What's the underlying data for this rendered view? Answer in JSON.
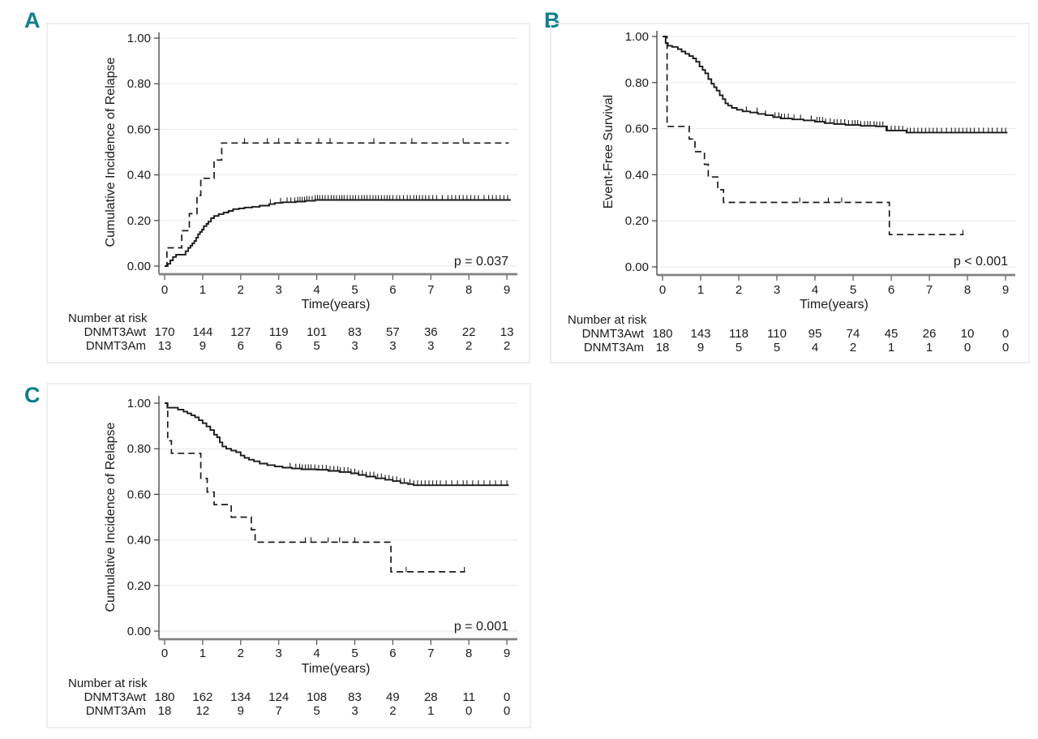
{
  "colors": {
    "accent": "#0f808c",
    "curve": "#1a1a1a",
    "grid": "#e8e8e8",
    "axis_x": "#808080",
    "axis_y": "#3d3d3d",
    "panel_border": "#eae7e7",
    "background": "#ffffff"
  },
  "chart_data": [
    {
      "type": "line",
      "subtype": "survival-step",
      "panel": "A",
      "ylabel": "Cumulative Incidence of Relapse",
      "xlabel": "Time(years)",
      "p_value": "p = 0.037",
      "ylim": [
        0,
        1
      ],
      "xlim": [
        0,
        9
      ],
      "grid": true,
      "yticks": {
        "values": [
          0,
          0.2,
          0.4,
          0.6,
          0.8,
          1.0
        ],
        "labels": [
          "0.00",
          "0.20",
          "0.40",
          "0.60",
          "0.80",
          "1.00"
        ]
      },
      "xticks": {
        "values": [
          0,
          1,
          2,
          3,
          4,
          5,
          6,
          7,
          8,
          9
        ],
        "labels": [
          "0",
          "1",
          "2",
          "3",
          "4",
          "5",
          "6",
          "7",
          "8",
          "9"
        ]
      },
      "series": [
        {
          "name": "DNMT3Awt",
          "style": "solid",
          "end_t": 9.1,
          "points": [
            [
              0,
              0
            ],
            [
              0.08,
              0.01
            ],
            [
              0.15,
              0.025
            ],
            [
              0.22,
              0.04
            ],
            [
              0.3,
              0.05
            ],
            [
              0.55,
              0.065
            ],
            [
              0.62,
              0.08
            ],
            [
              0.68,
              0.09
            ],
            [
              0.73,
              0.1
            ],
            [
              0.78,
              0.11
            ],
            [
              0.83,
              0.125
            ],
            [
              0.88,
              0.14
            ],
            [
              0.93,
              0.15
            ],
            [
              0.98,
              0.16
            ],
            [
              1.03,
              0.175
            ],
            [
              1.1,
              0.185
            ],
            [
              1.15,
              0.195
            ],
            [
              1.22,
              0.21
            ],
            [
              1.3,
              0.22
            ],
            [
              1.42,
              0.228
            ],
            [
              1.55,
              0.235
            ],
            [
              1.68,
              0.242
            ],
            [
              1.8,
              0.25
            ],
            [
              1.95,
              0.253
            ],
            [
              2.1,
              0.257
            ],
            [
              2.3,
              0.26
            ],
            [
              2.5,
              0.265
            ],
            [
              2.75,
              0.272
            ],
            [
              2.9,
              0.277
            ],
            [
              3.1,
              0.28
            ],
            [
              3.45,
              0.283
            ],
            [
              3.7,
              0.286
            ],
            [
              3.95,
              0.29
            ]
          ],
          "censor_t": [
            2.78,
            3.05,
            3.22,
            3.32,
            3.42,
            3.5,
            3.56,
            3.62,
            3.68,
            3.74,
            3.8,
            3.88,
            3.96,
            4.02,
            4.08,
            4.15,
            4.22,
            4.3,
            4.38,
            4.45,
            4.52,
            4.6,
            4.66,
            4.72,
            4.8,
            4.88,
            4.95,
            5.02,
            5.1,
            5.18,
            5.25,
            5.32,
            5.4,
            5.48,
            5.55,
            5.62,
            5.7,
            5.78,
            5.85,
            5.92,
            6.0,
            6.1,
            6.18,
            6.28,
            6.38,
            6.46,
            6.55,
            6.62,
            6.7,
            6.78,
            6.86,
            6.95,
            7.05,
            7.15,
            7.3,
            7.45,
            7.55,
            7.65,
            7.75,
            7.85,
            7.95,
            8.05,
            8.15,
            8.25,
            8.4,
            8.52,
            8.62,
            8.72,
            8.82,
            8.92,
            9.02
          ]
        },
        {
          "name": "DNMT3Am",
          "style": "dashed",
          "end_t": 9.05,
          "points": [
            [
              0,
              0
            ],
            [
              0.06,
              0.08
            ],
            [
              0.45,
              0.155
            ],
            [
              0.65,
              0.23
            ],
            [
              0.85,
              0.31
            ],
            [
              0.95,
              0.385
            ],
            [
              1.3,
              0.465
            ],
            [
              1.5,
              0.54
            ]
          ],
          "censor_t": [
            2.1,
            2.7,
            3.0,
            3.5,
            4.05,
            4.35,
            5.5,
            6.5,
            7.85
          ]
        }
      ],
      "number_at_risk": {
        "header": "Number at risk",
        "rows": [
          {
            "label": "DNMT3Awt",
            "values": [
              "170",
              "144",
              "127",
              "119",
              "101",
              "83",
              "57",
              "36",
              "22",
              "13"
            ]
          },
          {
            "label": "DNMT3Am",
            "values": [
              "13",
              "9",
              "6",
              "6",
              "5",
              "3",
              "3",
              "3",
              "2",
              "2"
            ]
          }
        ]
      }
    },
    {
      "type": "line",
      "subtype": "survival-step",
      "panel": "B",
      "ylabel": "Event-Free Survival",
      "xlabel": "Time(years)",
      "p_value": "p < 0.001",
      "ylim": [
        0,
        1
      ],
      "xlim": [
        0,
        9
      ],
      "grid": true,
      "yticks": {
        "values": [
          0,
          0.2,
          0.4,
          0.6,
          0.8,
          1.0
        ],
        "labels": [
          "0.00",
          "0.20",
          "0.40",
          "0.60",
          "0.80",
          "1.00"
        ]
      },
      "xticks": {
        "values": [
          0,
          1,
          2,
          3,
          4,
          5,
          6,
          7,
          8,
          9
        ],
        "labels": [
          "0",
          "1",
          "2",
          "3",
          "4",
          "5",
          "6",
          "7",
          "8",
          "9"
        ]
      },
      "series": [
        {
          "name": "DNMT3Awt",
          "style": "solid",
          "end_t": 9.05,
          "points": [
            [
              0,
              1.0
            ],
            [
              0.08,
              0.972
            ],
            [
              0.14,
              0.96
            ],
            [
              0.25,
              0.955
            ],
            [
              0.4,
              0.945
            ],
            [
              0.5,
              0.935
            ],
            [
              0.6,
              0.925
            ],
            [
              0.7,
              0.915
            ],
            [
              0.8,
              0.905
            ],
            [
              0.88,
              0.89
            ],
            [
              0.97,
              0.87
            ],
            [
              1.05,
              0.855
            ],
            [
              1.12,
              0.84
            ],
            [
              1.2,
              0.815
            ],
            [
              1.28,
              0.795
            ],
            [
              1.35,
              0.78
            ],
            [
              1.42,
              0.765
            ],
            [
              1.5,
              0.745
            ],
            [
              1.58,
              0.728
            ],
            [
              1.65,
              0.71
            ],
            [
              1.72,
              0.7
            ],
            [
              1.82,
              0.69
            ],
            [
              1.95,
              0.682
            ],
            [
              2.1,
              0.675
            ],
            [
              2.3,
              0.67
            ],
            [
              2.5,
              0.664
            ],
            [
              2.7,
              0.658
            ],
            [
              2.9,
              0.65
            ],
            [
              3.1,
              0.644
            ],
            [
              3.4,
              0.64
            ],
            [
              3.7,
              0.636
            ],
            [
              4.0,
              0.63
            ],
            [
              4.25,
              0.624
            ],
            [
              4.5,
              0.62
            ],
            [
              4.8,
              0.616
            ],
            [
              5.2,
              0.612
            ],
            [
              5.6,
              0.61
            ],
            [
              5.87,
              0.592
            ],
            [
              6.4,
              0.583
            ]
          ],
          "censor_t": [
            2.2,
            2.48,
            2.7,
            2.95,
            3.05,
            3.12,
            3.2,
            3.3,
            3.45,
            3.62,
            3.9,
            4.05,
            4.12,
            4.2,
            4.28,
            4.4,
            4.5,
            4.58,
            4.68,
            4.78,
            4.88,
            4.98,
            5.05,
            5.12,
            5.2,
            5.3,
            5.38,
            5.45,
            5.55,
            5.62,
            5.7,
            5.78,
            5.9,
            6.0,
            6.1,
            6.2,
            6.3,
            6.42,
            6.5,
            6.6,
            6.7,
            6.8,
            6.9,
            7.0,
            7.1,
            7.2,
            7.32,
            7.45,
            7.58,
            7.68,
            7.78,
            7.88,
            7.98,
            8.08,
            8.18,
            8.3,
            8.42,
            8.55,
            8.65,
            8.78,
            8.9,
            9.0
          ]
        },
        {
          "name": "DNMT3Am",
          "style": "dashed",
          "end_t": 7.9,
          "points": [
            [
              0,
              1.0
            ],
            [
              0.12,
              0.61
            ],
            [
              0.7,
              0.555
            ],
            [
              0.85,
              0.5
            ],
            [
              1.1,
              0.445
            ],
            [
              1.2,
              0.39
            ],
            [
              1.45,
              0.335
            ],
            [
              1.6,
              0.28
            ],
            [
              5.95,
              0.14
            ]
          ],
          "censor_t": [
            3.6,
            4.35,
            4.7,
            7.88
          ]
        }
      ],
      "number_at_risk": {
        "header": "Number at risk",
        "rows": [
          {
            "label": "DNMT3Awt",
            "values": [
              "180",
              "143",
              "118",
              "110",
              "95",
              "74",
              "45",
              "26",
              "10",
              "0"
            ]
          },
          {
            "label": "DNMT3Am",
            "values": [
              "18",
              "9",
              "5",
              "5",
              "4",
              "2",
              "1",
              "1",
              "0",
              "0"
            ]
          }
        ]
      }
    },
    {
      "type": "line",
      "subtype": "survival-step",
      "panel": "C",
      "ylabel": "Cumulative Incidence of Relapse",
      "xlabel": "Time(years)",
      "p_value": "p = 0.001",
      "ylim": [
        0,
        1
      ],
      "xlim": [
        0,
        9
      ],
      "grid": true,
      "yticks": {
        "values": [
          0,
          0.2,
          0.4,
          0.6,
          0.8,
          1.0
        ],
        "labels": [
          "0.00",
          "0.20",
          "0.40",
          "0.60",
          "0.80",
          "1.00"
        ]
      },
      "xticks": {
        "values": [
          0,
          1,
          2,
          3,
          4,
          5,
          6,
          7,
          8,
          9
        ],
        "labels": [
          "0",
          "1",
          "2",
          "3",
          "4",
          "5",
          "6",
          "7",
          "8",
          "9"
        ]
      },
      "series": [
        {
          "name": "DNMT3Awt",
          "style": "solid",
          "end_t": 9.05,
          "points": [
            [
              0,
              1.0
            ],
            [
              0.07,
              0.98
            ],
            [
              0.35,
              0.972
            ],
            [
              0.5,
              0.963
            ],
            [
              0.6,
              0.955
            ],
            [
              0.7,
              0.947
            ],
            [
              0.8,
              0.938
            ],
            [
              0.9,
              0.925
            ],
            [
              1.0,
              0.912
            ],
            [
              1.1,
              0.898
            ],
            [
              1.2,
              0.882
            ],
            [
              1.3,
              0.862
            ],
            [
              1.38,
              0.85
            ],
            [
              1.45,
              0.828
            ],
            [
              1.52,
              0.81
            ],
            [
              1.62,
              0.8
            ],
            [
              1.75,
              0.792
            ],
            [
              1.88,
              0.785
            ],
            [
              2.0,
              0.77
            ],
            [
              2.1,
              0.76
            ],
            [
              2.22,
              0.752
            ],
            [
              2.35,
              0.745
            ],
            [
              2.5,
              0.735
            ],
            [
              2.7,
              0.728
            ],
            [
              2.9,
              0.722
            ],
            [
              3.1,
              0.717
            ],
            [
              3.35,
              0.713
            ],
            [
              3.6,
              0.71
            ],
            [
              4.0,
              0.708
            ],
            [
              4.3,
              0.703
            ],
            [
              4.6,
              0.698
            ],
            [
              4.9,
              0.692
            ],
            [
              5.1,
              0.685
            ],
            [
              5.3,
              0.678
            ],
            [
              5.55,
              0.67
            ],
            [
              5.8,
              0.664
            ],
            [
              6.0,
              0.658
            ],
            [
              6.2,
              0.65
            ],
            [
              6.4,
              0.645
            ],
            [
              6.55,
              0.64
            ]
          ],
          "censor_t": [
            3.3,
            3.45,
            3.55,
            3.62,
            3.7,
            3.78,
            3.85,
            3.95,
            4.05,
            4.15,
            4.25,
            4.35,
            4.45,
            4.55,
            4.62,
            4.72,
            4.82,
            4.9,
            5.0,
            5.1,
            5.2,
            5.3,
            5.4,
            5.5,
            5.6,
            5.7,
            5.8,
            5.9,
            6.0,
            6.1,
            6.2,
            6.3,
            6.45,
            6.55,
            6.65,
            6.75,
            6.85,
            6.95,
            7.05,
            7.15,
            7.25,
            7.4,
            7.55,
            7.7,
            7.85,
            7.95,
            8.1,
            8.25,
            8.4,
            8.55,
            8.7,
            8.85,
            9.0
          ]
        },
        {
          "name": "DNMT3Am",
          "style": "dashed",
          "end_t": 7.9,
          "points": [
            [
              0,
              1.0
            ],
            [
              0.08,
              0.835
            ],
            [
              0.18,
              0.78
            ],
            [
              0.95,
              0.67
            ],
            [
              1.12,
              0.61
            ],
            [
              1.3,
              0.555
            ],
            [
              1.75,
              0.5
            ],
            [
              2.28,
              0.445
            ],
            [
              2.38,
              0.39
            ],
            [
              5.95,
              0.26
            ]
          ],
          "censor_t": [
            3.7,
            3.85,
            4.3,
            4.6,
            5.0,
            6.35,
            7.88
          ]
        }
      ],
      "number_at_risk": {
        "header": "Number at risk",
        "rows": [
          {
            "label": "DNMT3Awt",
            "values": [
              "180",
              "162",
              "134",
              "124",
              "108",
              "83",
              "49",
              "28",
              "11",
              "0"
            ]
          },
          {
            "label": "DNMT3Am",
            "values": [
              "18",
              "12",
              "9",
              "7",
              "5",
              "3",
              "2",
              "1",
              "0",
              "0"
            ]
          }
        ]
      }
    }
  ]
}
